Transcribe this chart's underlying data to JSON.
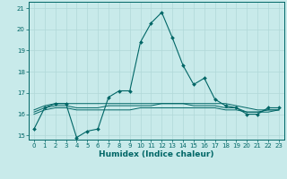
{
  "title": "",
  "xlabel": "Humidex (Indice chaleur)",
  "ylabel": "",
  "background_color": "#c8eaea",
  "grid_color": "#b0d8d8",
  "line_color": "#006666",
  "xlim": [
    -0.5,
    23.5
  ],
  "ylim": [
    14.8,
    21.3
  ],
  "yticks": [
    15,
    16,
    17,
    18,
    19,
    20,
    21
  ],
  "xticks": [
    0,
    1,
    2,
    3,
    4,
    5,
    6,
    7,
    8,
    9,
    10,
    11,
    12,
    13,
    14,
    15,
    16,
    17,
    18,
    19,
    20,
    21,
    22,
    23
  ],
  "series": [
    {
      "x": [
        0,
        1,
        2,
        3,
        4,
        5,
        6,
        7,
        8,
        9,
        10,
        11,
        12,
        13,
        14,
        15,
        16,
        17,
        18,
        19,
        20,
        21,
        22,
        23
      ],
      "y": [
        15.3,
        16.3,
        16.5,
        16.5,
        14.9,
        15.2,
        15.3,
        16.8,
        17.1,
        17.1,
        19.4,
        20.3,
        20.8,
        19.6,
        18.3,
        17.4,
        17.7,
        16.7,
        16.4,
        16.3,
        16.0,
        16.0,
        16.3,
        16.3
      ],
      "marker": true
    },
    {
      "x": [
        0,
        1,
        2,
        3,
        4,
        5,
        6,
        7,
        8,
        9,
        10,
        11,
        12,
        13,
        14,
        15,
        16,
        17,
        18,
        19,
        20,
        21,
        22,
        23
      ],
      "y": [
        16.2,
        16.4,
        16.5,
        16.5,
        16.5,
        16.5,
        16.5,
        16.5,
        16.5,
        16.5,
        16.5,
        16.5,
        16.5,
        16.5,
        16.5,
        16.5,
        16.5,
        16.5,
        16.5,
        16.4,
        16.3,
        16.2,
        16.2,
        16.2
      ],
      "marker": false
    },
    {
      "x": [
        0,
        1,
        2,
        3,
        4,
        5,
        6,
        7,
        8,
        9,
        10,
        11,
        12,
        13,
        14,
        15,
        16,
        17,
        18,
        19,
        20,
        21,
        22,
        23
      ],
      "y": [
        16.1,
        16.3,
        16.4,
        16.4,
        16.3,
        16.3,
        16.3,
        16.4,
        16.4,
        16.4,
        16.4,
        16.4,
        16.5,
        16.5,
        16.5,
        16.4,
        16.4,
        16.4,
        16.3,
        16.3,
        16.1,
        16.1,
        16.2,
        16.2
      ],
      "marker": false
    },
    {
      "x": [
        0,
        1,
        2,
        3,
        4,
        5,
        6,
        7,
        8,
        9,
        10,
        11,
        12,
        13,
        14,
        15,
        16,
        17,
        18,
        19,
        20,
        21,
        22,
        23
      ],
      "y": [
        16.0,
        16.2,
        16.3,
        16.3,
        16.2,
        16.2,
        16.2,
        16.2,
        16.2,
        16.2,
        16.3,
        16.3,
        16.3,
        16.3,
        16.3,
        16.3,
        16.3,
        16.3,
        16.2,
        16.2,
        16.1,
        16.1,
        16.1,
        16.2
      ],
      "marker": false
    }
  ],
  "tick_fontsize": 5,
  "xlabel_fontsize": 6.5,
  "xlabel_fontweight": "bold"
}
